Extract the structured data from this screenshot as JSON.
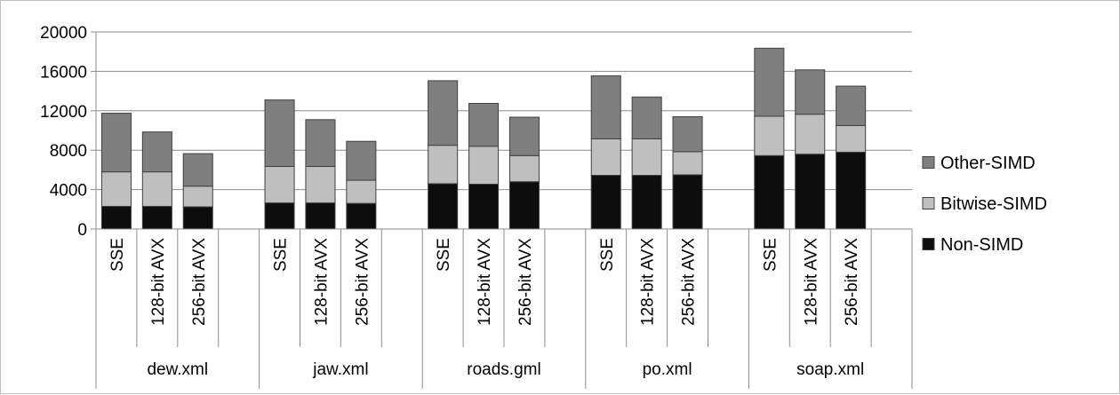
{
  "chart_data": {
    "type": "bar",
    "stacked": true,
    "title": "",
    "xlabel": "",
    "ylabel": "",
    "ylim": [
      0,
      20000
    ],
    "yticks": [
      0,
      4000,
      8000,
      12000,
      16000,
      20000
    ],
    "ytick_labels": [
      "0",
      "4000",
      "8000",
      "12000",
      "16000",
      "20000"
    ],
    "grid": true,
    "legend_position": "right",
    "groups": [
      "dew.xml",
      "jaw.xml",
      "roads.gml",
      "po.xml",
      "soap.xml"
    ],
    "categories": [
      "SSE",
      "128-bit AVX",
      "256-bit AVX"
    ],
    "series": [
      {
        "name": "Non-SIMD",
        "color": "#0d0d0d",
        "values": [
          [
            2300,
            2300,
            2250
          ],
          [
            2650,
            2650,
            2600
          ],
          [
            4600,
            4550,
            4800
          ],
          [
            5450,
            5450,
            5500
          ],
          [
            7450,
            7600,
            7800
          ]
        ]
      },
      {
        "name": "Bitwise-SIMD",
        "color": "#bfbfbf",
        "values": [
          [
            3500,
            3500,
            2100
          ],
          [
            3700,
            3700,
            2350
          ],
          [
            3900,
            3850,
            2650
          ],
          [
            3700,
            3700,
            2350
          ],
          [
            4000,
            4050,
            2700
          ]
        ]
      },
      {
        "name": "Other-SIMD",
        "color": "#7f7f7f",
        "values": [
          [
            5950,
            4050,
            3300
          ],
          [
            6750,
            4750,
            3950
          ],
          [
            6550,
            4350,
            3900
          ],
          [
            6400,
            4250,
            3550
          ],
          [
            6900,
            4500,
            4000
          ]
        ]
      }
    ]
  }
}
